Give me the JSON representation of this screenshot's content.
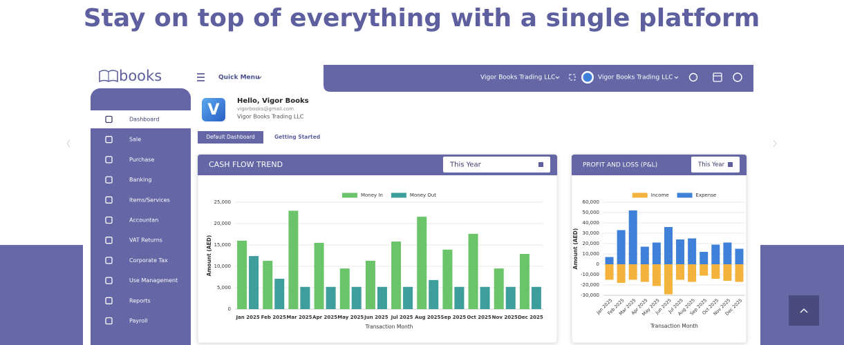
{
  "header": {
    "title": "Stay on top of everything with a single platform"
  },
  "app": {
    "logo": "books",
    "quick_menu": "Quick Menu",
    "company_select": "Vigor Books Trading LLC",
    "company_profile": "Vigor Books Trading LLC"
  },
  "sidebar": {
    "items": [
      "Dashboard",
      "Sale",
      "Purchase",
      "Banking",
      "Items/Services",
      "Accountan",
      "VAT Returns",
      "Corporate Tax",
      "Use Management",
      "Reports",
      "Payroll"
    ],
    "active": 0
  },
  "user": {
    "avatar": "V",
    "greeting": "Hello, Vigor Books",
    "email": "vigorbooks@gmail.com",
    "company": "Vigor Books Trading LLC"
  },
  "tabs": [
    "Default Dashboard",
    "Getting Started"
  ],
  "chart_data": [
    {
      "type": "bar",
      "title": "CASH FLOW TREND",
      "period": "This Year",
      "y_label": "Amount (AED)",
      "x_label": "Transaction Month",
      "categories": [
        "Jan 2025",
        "Feb 2025",
        "Mar 2025",
        "Apr 2025",
        "May 2025",
        "Jun 2025",
        "Jul 2025",
        "Aug 2025",
        "Sep 2025",
        "Oct 2025",
        "Nov 2025",
        "Dec 2025"
      ],
      "series": [
        {
          "name": "Money In",
          "color": "#6cc46a",
          "values": [
            16000,
            11300,
            23000,
            15500,
            9500,
            11300,
            15800,
            21600,
            13900,
            17600,
            9500,
            12900
          ]
        },
        {
          "name": "Money Out",
          "color": "#3e9e9c",
          "values": [
            12400,
            7100,
            5200,
            5200,
            5200,
            5200,
            5200,
            6800,
            5200,
            5200,
            5200,
            5200
          ]
        }
      ],
      "ylim": [
        0,
        25000
      ],
      "yticks": [
        0,
        {
          "value": 5000,
          "label": "5,000"
        },
        {
          "value": 10000,
          "label": "10,000"
        },
        {
          "value": 15000,
          "label": "15,000"
        },
        {
          "value": 20000,
          "label": "20,000"
        },
        {
          "value": 25000,
          "label": "25,000"
        }
      ],
      "grid": true,
      "stacked": false
    },
    {
      "type": "bar",
      "title": "PROFIT AND LOSS (P&L)",
      "period": "This Year",
      "y_label": "Amount (AED)",
      "x_label": "Transaction Month",
      "categories": [
        "Jan 2025",
        "Feb 2025",
        "Mar 2025",
        "Apr 2025",
        "May 2025",
        "Jun 2025",
        "Jul 2025",
        "Aug 2025",
        "Sep 2025",
        "Oct 2025",
        "Nov 2025",
        "Dec 2025"
      ],
      "series": [
        {
          "name": "Income",
          "color": "#f3b33d",
          "values": [
            -15000,
            -18000,
            -15000,
            -17000,
            -21000,
            -29000,
            -15000,
            -17000,
            -11000,
            -14000,
            -16000,
            -17000
          ]
        },
        {
          "name": "Expense",
          "color": "#3f80d9",
          "values": [
            7000,
            33000,
            52000,
            17000,
            21000,
            36000,
            24000,
            25000,
            12000,
            19000,
            21000,
            15000
          ]
        }
      ],
      "ylim": [
        -30000,
        60000
      ],
      "yticks": [
        {
          "value": -30000,
          "label": "-30,000"
        },
        {
          "value": -20000,
          "label": "-20,000"
        },
        {
          "value": -10000,
          "label": "-10,000"
        },
        0,
        {
          "value": 10000,
          "label": "10,000"
        },
        {
          "value": 20000,
          "label": "20,000"
        },
        {
          "value": 30000,
          "label": "30,000"
        },
        {
          "value": 40000,
          "label": "40,000"
        },
        {
          "value": 50000,
          "label": "50,000"
        },
        {
          "value": 60000,
          "label": "60,000"
        }
      ],
      "grid": true,
      "stacked": true
    }
  ]
}
